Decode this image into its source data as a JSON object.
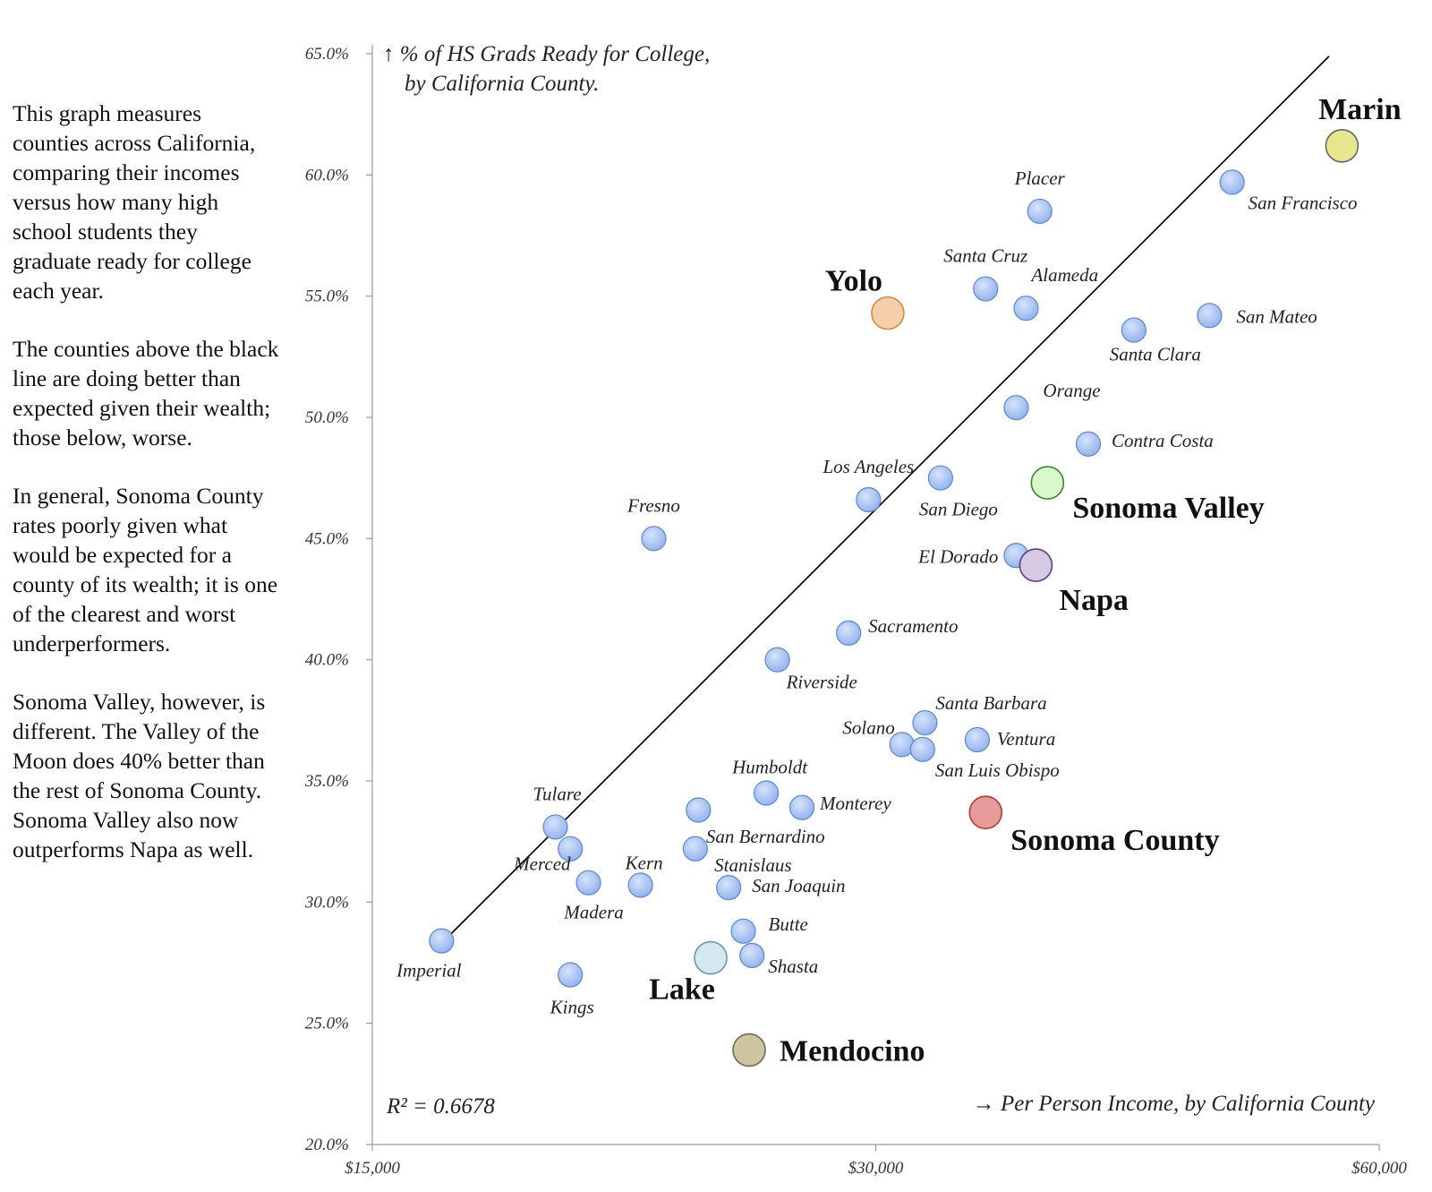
{
  "description": [
    "This graph measures counties across California, comparing their incomes versus how many high school students they graduate ready for college each year.",
    "The counties above the black line are doing better than expected given their wealth; those below, worse.",
    "In general, Sonoma County rates poorly given what would be expected for a county of its wealth; it is one of the clearest and worst underperformers.",
    "Sonoma Valley, however, is different. The Valley of the Moon does 40% better than the rest of Sonoma County. Sonoma Valley also now outperforms Napa as well."
  ],
  "chart_data": {
    "type": "scatter",
    "ylabel": [
      "% of HS Grads Ready for College,",
      "by California County."
    ],
    "xlabel": "→ Per Person Income, by California County",
    "r_squared": "R² = 0.6678",
    "x_axis": {
      "scale": "log",
      "range": [
        15000,
        60000
      ],
      "ticks": [
        15000,
        30000,
        60000
      ],
      "tick_labels": [
        "$15,000",
        "$30,000",
        "$60,000"
      ]
    },
    "y_axis": {
      "range": [
        20,
        65
      ],
      "ticks": [
        20,
        25,
        30,
        35,
        40,
        45,
        50,
        55,
        60,
        65
      ],
      "tick_labels": [
        "20.0%",
        "25.0%",
        "30.0%",
        "35.0%",
        "40.0%",
        "45.0%",
        "50.0%",
        "55.0%",
        "60.0%",
        "65.0%"
      ]
    },
    "trendline": {
      "x": [
        16500,
        56000
      ],
      "y": [
        28.3,
        64.9
      ]
    },
    "colors": {
      "default_fill": "#8fb1ec",
      "default_stroke": "#5b86d6",
      "Marin": "#e6e68f",
      "Yolo": "#f4cfaa",
      "Sonoma Valley": "#d9f8cc",
      "Napa": "#d6c9e3",
      "Sonoma County": "#e79a9a",
      "Lake": "#d3e8f0",
      "Mendocino": "#cdc5a0"
    },
    "points": [
      {
        "name": "Marin",
        "x": 57000,
        "y": 61.2,
        "highlight": true
      },
      {
        "name": "San Francisco",
        "x": 49000,
        "y": 59.7
      },
      {
        "name": "Placer",
        "x": 37600,
        "y": 58.5
      },
      {
        "name": "Santa Cruz",
        "x": 34900,
        "y": 55.3
      },
      {
        "name": "Alameda",
        "x": 36900,
        "y": 54.5
      },
      {
        "name": "Yolo",
        "x": 30500,
        "y": 54.3,
        "highlight": true
      },
      {
        "name": "San Mateo",
        "x": 47500,
        "y": 54.2
      },
      {
        "name": "Santa Clara",
        "x": 42800,
        "y": 53.6
      },
      {
        "name": "Orange",
        "x": 36400,
        "y": 50.4
      },
      {
        "name": "Contra Costa",
        "x": 40200,
        "y": 48.9
      },
      {
        "name": "San Diego",
        "x": 32800,
        "y": 47.5
      },
      {
        "name": "Sonoma Valley",
        "x": 38000,
        "y": 47.3,
        "highlight": true
      },
      {
        "name": "Los Angeles",
        "x": 29700,
        "y": 46.6
      },
      {
        "name": "Fresno",
        "x": 22100,
        "y": 45.0
      },
      {
        "name": "El Dorado",
        "x": 36400,
        "y": 44.3
      },
      {
        "name": "Napa",
        "x": 37400,
        "y": 43.9,
        "highlight": true
      },
      {
        "name": "Sacramento",
        "x": 28900,
        "y": 41.1
      },
      {
        "name": "Riverside",
        "x": 26200,
        "y": 40.0
      },
      {
        "name": "Santa Barbara",
        "x": 32100,
        "y": 37.4
      },
      {
        "name": "Solano",
        "x": 31100,
        "y": 36.5
      },
      {
        "name": "San Luis Obispo",
        "x": 32000,
        "y": 36.3
      },
      {
        "name": "Ventura",
        "x": 34500,
        "y": 36.7
      },
      {
        "name": "Humboldt",
        "x": 25800,
        "y": 34.5
      },
      {
        "name": "Monterey",
        "x": 27100,
        "y": 33.9
      },
      {
        "name": "Sonoma County",
        "x": 34900,
        "y": 33.7,
        "highlight": true
      },
      {
        "name": "",
        "x": 23500,
        "y": 33.8
      },
      {
        "name": "Tulare",
        "x": 19300,
        "y": 33.1
      },
      {
        "name": "San Bernardino",
        "x": 23400,
        "y": 32.2
      },
      {
        "name": "",
        "x": 19700,
        "y": 32.2
      },
      {
        "name": "Merced",
        "x": 20200,
        "y": 30.8
      },
      {
        "name": "Kern",
        "x": 21700,
        "y": 30.7
      },
      {
        "name": "Madera",
        "x": 20200,
        "y": 30.8,
        "label_only": true
      },
      {
        "name": "Stanislaus",
        "x": 24500,
        "y": 30.6
      },
      {
        "name": "San Joaquin",
        "x": 24500,
        "y": 30.6,
        "label_only": true
      },
      {
        "name": "Butte",
        "x": 25000,
        "y": 28.8
      },
      {
        "name": "Shasta",
        "x": 25300,
        "y": 27.8
      },
      {
        "name": "Imperial",
        "x": 16500,
        "y": 28.4
      },
      {
        "name": "Lake",
        "x": 23900,
        "y": 27.7,
        "highlight": true
      },
      {
        "name": "Kings",
        "x": 19700,
        "y": 27.0
      },
      {
        "name": "Mendocino",
        "x": 25200,
        "y": 23.9,
        "highlight": true
      }
    ]
  }
}
